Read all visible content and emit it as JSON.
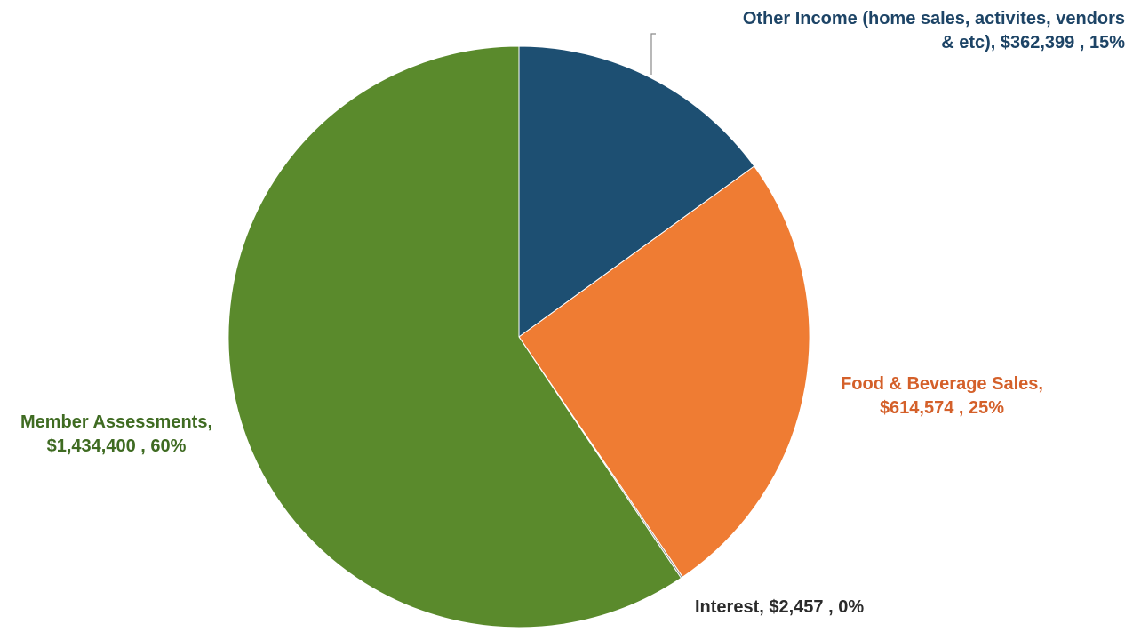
{
  "chart_data": {
    "type": "pie",
    "start_angle_deg": 0,
    "direction": "clockwise",
    "slices": [
      {
        "category": "Other Income (home sales, activites, vendors & etc)",
        "value": 362399,
        "percent": 15,
        "color": "#1d4f72",
        "label_lines": [
          "Other Income (home sales, activites, vendors",
          "& etc),  $362,399 , 15%"
        ],
        "label_color": "#1d4466"
      },
      {
        "category": "Food & Beverage Sales",
        "value": 614574,
        "percent": 25,
        "color": "#ef7c33",
        "label_lines": [
          "Food & Beverage Sales,",
          "$614,574 , 25%"
        ],
        "label_color": "#d4602a"
      },
      {
        "category": "Interest",
        "value": 2457,
        "percent": 0,
        "color": "#8a8a8a",
        "label_lines": [
          "Interest,  $2,457 , 0%"
        ],
        "label_color": "#2b2b2b"
      },
      {
        "category": "Member Assessments",
        "value": 1434400,
        "percent": 60,
        "color": "#5a8a2c",
        "label_lines": [
          "Member Assessments,",
          "$1,434,400 , 60%"
        ],
        "label_color": "#3f6b22"
      }
    ],
    "legend": "none",
    "data_labels": "outside"
  }
}
